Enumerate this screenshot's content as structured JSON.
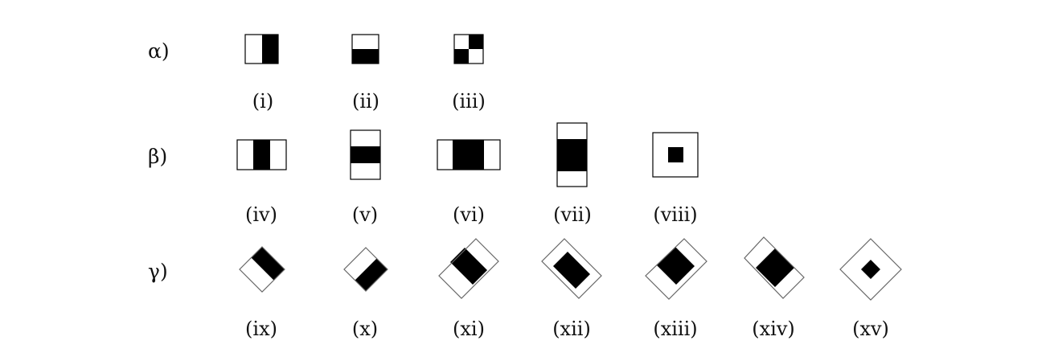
{
  "rows": [
    {
      "label": "α)",
      "features": [
        {
          "caption": "(i)",
          "icon": "two-rect-edge-vertical-icon"
        },
        {
          "caption": "(ii)",
          "icon": "two-rect-edge-horizontal-icon"
        },
        {
          "caption": "(iii)",
          "icon": "four-rect-checker-icon"
        }
      ]
    },
    {
      "label": "β)",
      "features": [
        {
          "caption": "(iv)",
          "icon": "line-vertical-narrow-icon"
        },
        {
          "caption": "(v)",
          "icon": "line-horizontal-narrow-icon"
        },
        {
          "caption": "(vi)",
          "icon": "line-vertical-wide-icon"
        },
        {
          "caption": "(vii)",
          "icon": "line-horizontal-wide-icon"
        },
        {
          "caption": "(viii)",
          "icon": "center-surround-icon"
        }
      ]
    },
    {
      "label": "γ)",
      "features": [
        {
          "caption": "(ix)",
          "icon": "tilted-edge-icon"
        },
        {
          "caption": "(x)",
          "icon": "tilted-edge-icon"
        },
        {
          "caption": "(xi)",
          "icon": "tilted-line-icon"
        },
        {
          "caption": "(xii)",
          "icon": "tilted-line-icon"
        },
        {
          "caption": "(xiii)",
          "icon": "tilted-line-wide-icon"
        },
        {
          "caption": "(xiv)",
          "icon": "tilted-line-wide-icon"
        },
        {
          "caption": "(xv)",
          "icon": "tilted-center-surround-icon"
        }
      ]
    }
  ]
}
